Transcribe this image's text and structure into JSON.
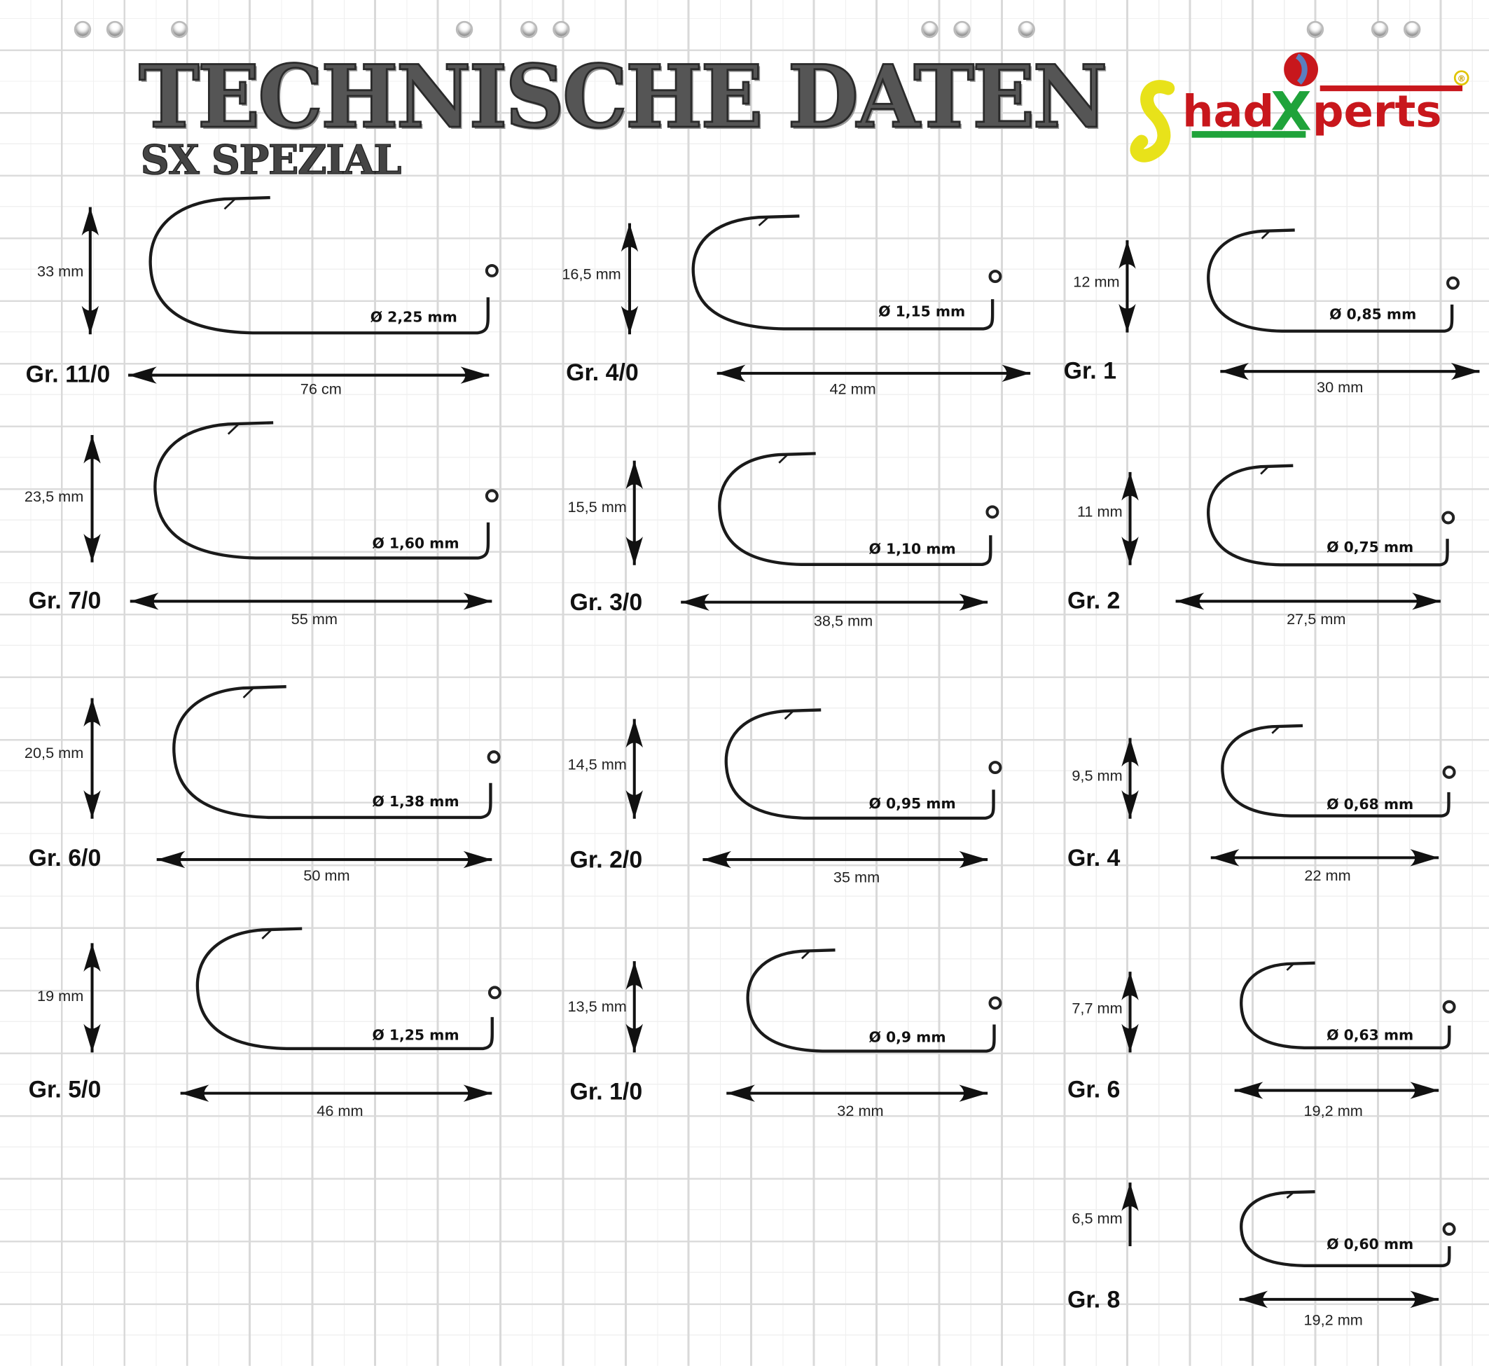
{
  "header": {
    "title": "TECHNISCHE DATEN",
    "subtitle": "SX SPEZIAL",
    "logo_text": "ShadXperts",
    "logo_registered": "®"
  },
  "colors": {
    "logo_red": "#c8171c",
    "logo_green": "#1fa33a",
    "logo_yellow": "#e8e21a"
  },
  "hooks": [
    {
      "size": "Gr. 11/0",
      "height": "33 mm",
      "diameter": "Ø 2,25 mm",
      "length": "76 cm"
    },
    {
      "size": "Gr. 7/0",
      "height": "23,5 mm",
      "diameter": "Ø 1,60 mm",
      "length": "55 mm"
    },
    {
      "size": "Gr. 6/0",
      "height": "20,5 mm",
      "diameter": "Ø 1,38 mm",
      "length": "50 mm"
    },
    {
      "size": "Gr. 5/0",
      "height": "19 mm",
      "diameter": "Ø 1,25 mm",
      "length": "46 mm"
    },
    {
      "size": "Gr. 4/0",
      "height": "16,5 mm",
      "diameter": "Ø 1,15 mm",
      "length": "42 mm"
    },
    {
      "size": "Gr. 3/0",
      "height": "15,5 mm",
      "diameter": "Ø 1,10 mm",
      "length": "38,5 mm"
    },
    {
      "size": "Gr. 2/0",
      "height": "14,5 mm",
      "diameter": "Ø 0,95 mm",
      "length": "35 mm"
    },
    {
      "size": "Gr. 1/0",
      "height": "13,5 mm",
      "diameter": "Ø 0,9 mm",
      "length": "32 mm"
    },
    {
      "size": "Gr. 1",
      "height": "12 mm",
      "diameter": "Ø 0,85 mm",
      "length": "30 mm"
    },
    {
      "size": "Gr. 2",
      "height": "11 mm",
      "diameter": "Ø 0,75 mm",
      "length": "27,5 mm"
    },
    {
      "size": "Gr. 4",
      "height": "9,5 mm",
      "diameter": "Ø 0,68 mm",
      "length": "22 mm"
    },
    {
      "size": "Gr. 6",
      "height": "7,7 mm",
      "diameter": "Ø 0,63 mm",
      "length": "19,2 mm"
    },
    {
      "size": "Gr. 8",
      "height": "6,5 mm",
      "diameter": "Ø 0,60 mm",
      "length": "19,2 mm"
    }
  ]
}
